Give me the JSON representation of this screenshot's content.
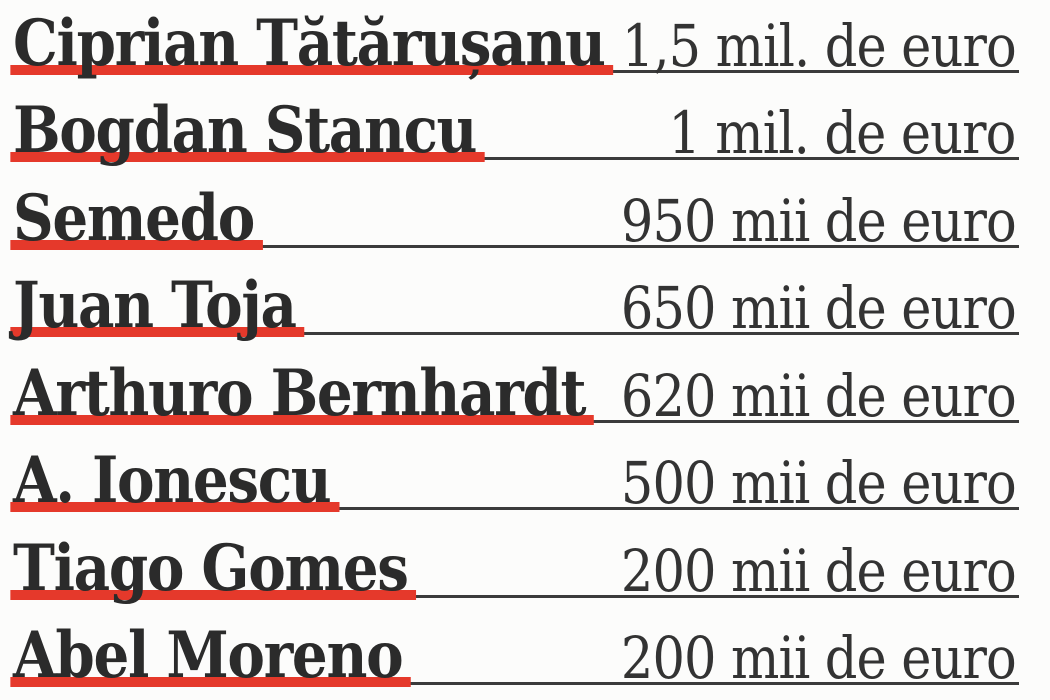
{
  "list": {
    "rows": [
      {
        "name": "Ciprian Tătărușanu",
        "value": "1,5 mil. de euro"
      },
      {
        "name": "Bogdan Stancu",
        "value": "1 mil. de euro"
      },
      {
        "name": "Semedo",
        "value": "950 mii de euro"
      },
      {
        "name": "Juan Toja",
        "value": "650 mii de euro"
      },
      {
        "name": "Arthuro Bernhardt",
        "value": "620 mii de euro"
      },
      {
        "name": "A. Ionescu",
        "value": "500 mii de euro"
      },
      {
        "name": "Tiago Gomes",
        "value": "200 mii de euro"
      },
      {
        "name": "Abel Moreno",
        "value": "200 mii de euro"
      }
    ],
    "colors": {
      "accent_red": "#e5392b",
      "name_text": "#2b2b2b",
      "value_text": "#333333",
      "rule_line": "#3b3b3b",
      "background": "#fcfcfb"
    }
  },
  "chart_data": {
    "type": "table",
    "title": "",
    "columns": [
      "player",
      "market_value"
    ],
    "rows": [
      [
        "Ciprian Tătărușanu",
        "1,5 mil. de euro"
      ],
      [
        "Bogdan Stancu",
        "1 mil. de euro"
      ],
      [
        "Semedo",
        "950 mii de euro"
      ],
      [
        "Juan Toja",
        "650 mii de euro"
      ],
      [
        "Arthuro Bernhardt",
        "620 mii de euro"
      ],
      [
        "A. Ionescu",
        "500 mii de euro"
      ],
      [
        "Tiago Gomes",
        "200 mii de euro"
      ],
      [
        "Abel Moreno",
        "200 mii de euro"
      ]
    ],
    "values_eur": [
      1500000,
      1000000,
      950000,
      650000,
      620000,
      500000,
      200000,
      200000
    ],
    "layout": {
      "names_left_aligned": true,
      "values_right_aligned": true,
      "red_underline_under_names": true,
      "thin_rule_to_right_edge": true
    }
  }
}
